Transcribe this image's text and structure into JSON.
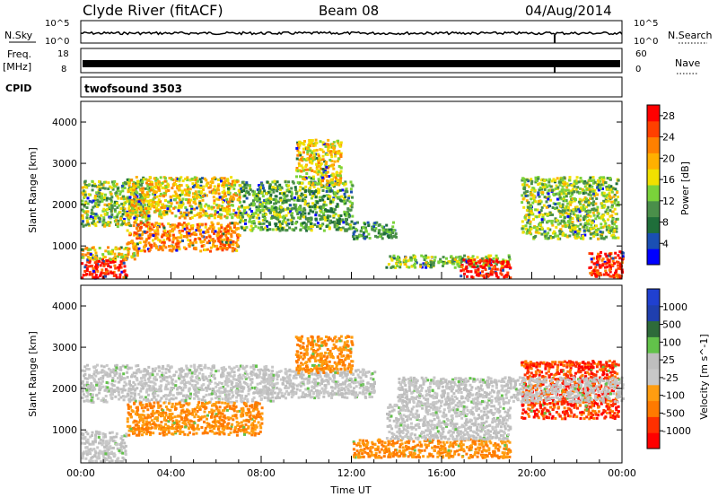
{
  "header": {
    "station": "Clyde River (fitACF)",
    "beam": "Beam 08",
    "date": "04/Aug/2014"
  },
  "aux": {
    "nsky_label": "N.Sky",
    "nsearch_label": "N.Search",
    "nsky_ticks": [
      "10^5",
      "10^0"
    ],
    "nsearch_ticks": [
      "10^5",
      "10^0"
    ],
    "freq_label": "Freq.",
    "freq_unit": "[MHz]",
    "freq_ticks": [
      "18",
      "8"
    ],
    "nave_label": "Nave",
    "nave_ticks": [
      "60",
      "0"
    ],
    "cpid_label": "CPID",
    "cpid_value": "twofsound 3503"
  },
  "colors": {
    "power": [
      "#0000ff",
      "#1a4fb3",
      "#1f6e3a",
      "#4a8f4a",
      "#7ad23a",
      "#f0e000",
      "#ffb000",
      "#ff8000",
      "#ff4000",
      "#ff0000"
    ],
    "velocity": [
      "#2040d0",
      "#1f3fae",
      "#2e6b3a",
      "#62c24a",
      "#bebebe",
      "#c8c8c8",
      "#ff9d10",
      "#ff7a00",
      "#ff3000",
      "#ff0000"
    ]
  },
  "chart_data": [
    {
      "type": "heatmap",
      "title": "Power",
      "xlabel": "",
      "ylabel": "Slant Range [km]",
      "x_ticks": [
        "00:00",
        "04:00",
        "08:00",
        "12:00",
        "16:00",
        "20:00",
        "00:00"
      ],
      "y_ticks": [
        "1000",
        "2000",
        "3000",
        "4000"
      ],
      "ylim": [
        200,
        4500
      ],
      "colorbar_label": "Power [dB]",
      "colorbar_ticks": [
        "4",
        "8",
        "12",
        "16",
        "20",
        "24",
        "28"
      ],
      "colorbar_range": [
        0,
        30
      ],
      "regions": [
        {
          "t0": 0.0,
          "t1": 2.0,
          "r0": 250,
          "r1": 700,
          "value": 28
        },
        {
          "t0": 0.0,
          "t1": 2.5,
          "r0": 700,
          "r1": 1000,
          "value": 18
        },
        {
          "t0": 0.0,
          "t1": 3.0,
          "r0": 1500,
          "r1": 2600,
          "value": 14
        },
        {
          "t0": 2.0,
          "t1": 7.0,
          "r0": 1700,
          "r1": 2700,
          "value": 18
        },
        {
          "t0": 2.0,
          "t1": 7.0,
          "r0": 900,
          "r1": 1600,
          "value": 22
        },
        {
          "t0": 7.0,
          "t1": 12.0,
          "r0": 1400,
          "r1": 2600,
          "value": 12
        },
        {
          "t0": 9.5,
          "t1": 11.5,
          "r0": 2500,
          "r1": 3600,
          "value": 18
        },
        {
          "t0": 12.0,
          "t1": 14.0,
          "r0": 1200,
          "r1": 1600,
          "value": 10
        },
        {
          "t0": 13.5,
          "t1": 19.0,
          "r0": 500,
          "r1": 800,
          "value": 14
        },
        {
          "t0": 16.8,
          "t1": 19.0,
          "r0": 250,
          "r1": 700,
          "value": 28
        },
        {
          "t0": 19.5,
          "t1": 23.8,
          "r0": 1200,
          "r1": 2700,
          "value": 14
        },
        {
          "t0": 22.5,
          "t1": 24.0,
          "r0": 250,
          "r1": 900,
          "value": 26
        }
      ]
    },
    {
      "type": "heatmap",
      "title": "Velocity",
      "xlabel": "Time UT",
      "ylabel": "Slant Range [km]",
      "x_ticks": [
        "00:00",
        "04:00",
        "08:00",
        "12:00",
        "16:00",
        "20:00",
        "00:00"
      ],
      "y_ticks": [
        "1000",
        "2000",
        "3000",
        "4000"
      ],
      "ylim": [
        200,
        4500
      ],
      "colorbar_label": "Velocity [m s^-1]",
      "colorbar_ticks": [
        "1000",
        "500",
        "100",
        "25",
        "-25",
        "-100",
        "-500",
        "-1000"
      ],
      "regions": [
        {
          "t0": 0.0,
          "t1": 8.5,
          "r0": 1700,
          "r1": 2600,
          "value": 0
        },
        {
          "t0": 0.0,
          "t1": 2.0,
          "r0": 250,
          "r1": 1000,
          "value": 0
        },
        {
          "t0": 2.0,
          "t1": 8.0,
          "r0": 900,
          "r1": 1700,
          "value": -250
        },
        {
          "t0": 8.0,
          "t1": 13.0,
          "r0": 1800,
          "r1": 2500,
          "value": 0
        },
        {
          "t0": 9.5,
          "t1": 12.0,
          "r0": 2400,
          "r1": 3300,
          "value": -250
        },
        {
          "t0": 12.0,
          "t1": 19.0,
          "r0": 350,
          "r1": 800,
          "value": -250
        },
        {
          "t0": 13.5,
          "t1": 19.0,
          "r0": 800,
          "r1": 1700,
          "value": 0
        },
        {
          "t0": 19.5,
          "t1": 23.8,
          "r0": 1300,
          "r1": 2700,
          "value": -500
        },
        {
          "t0": 14.0,
          "t1": 24.0,
          "r0": 1700,
          "r1": 2300,
          "value": 0
        }
      ]
    }
  ]
}
